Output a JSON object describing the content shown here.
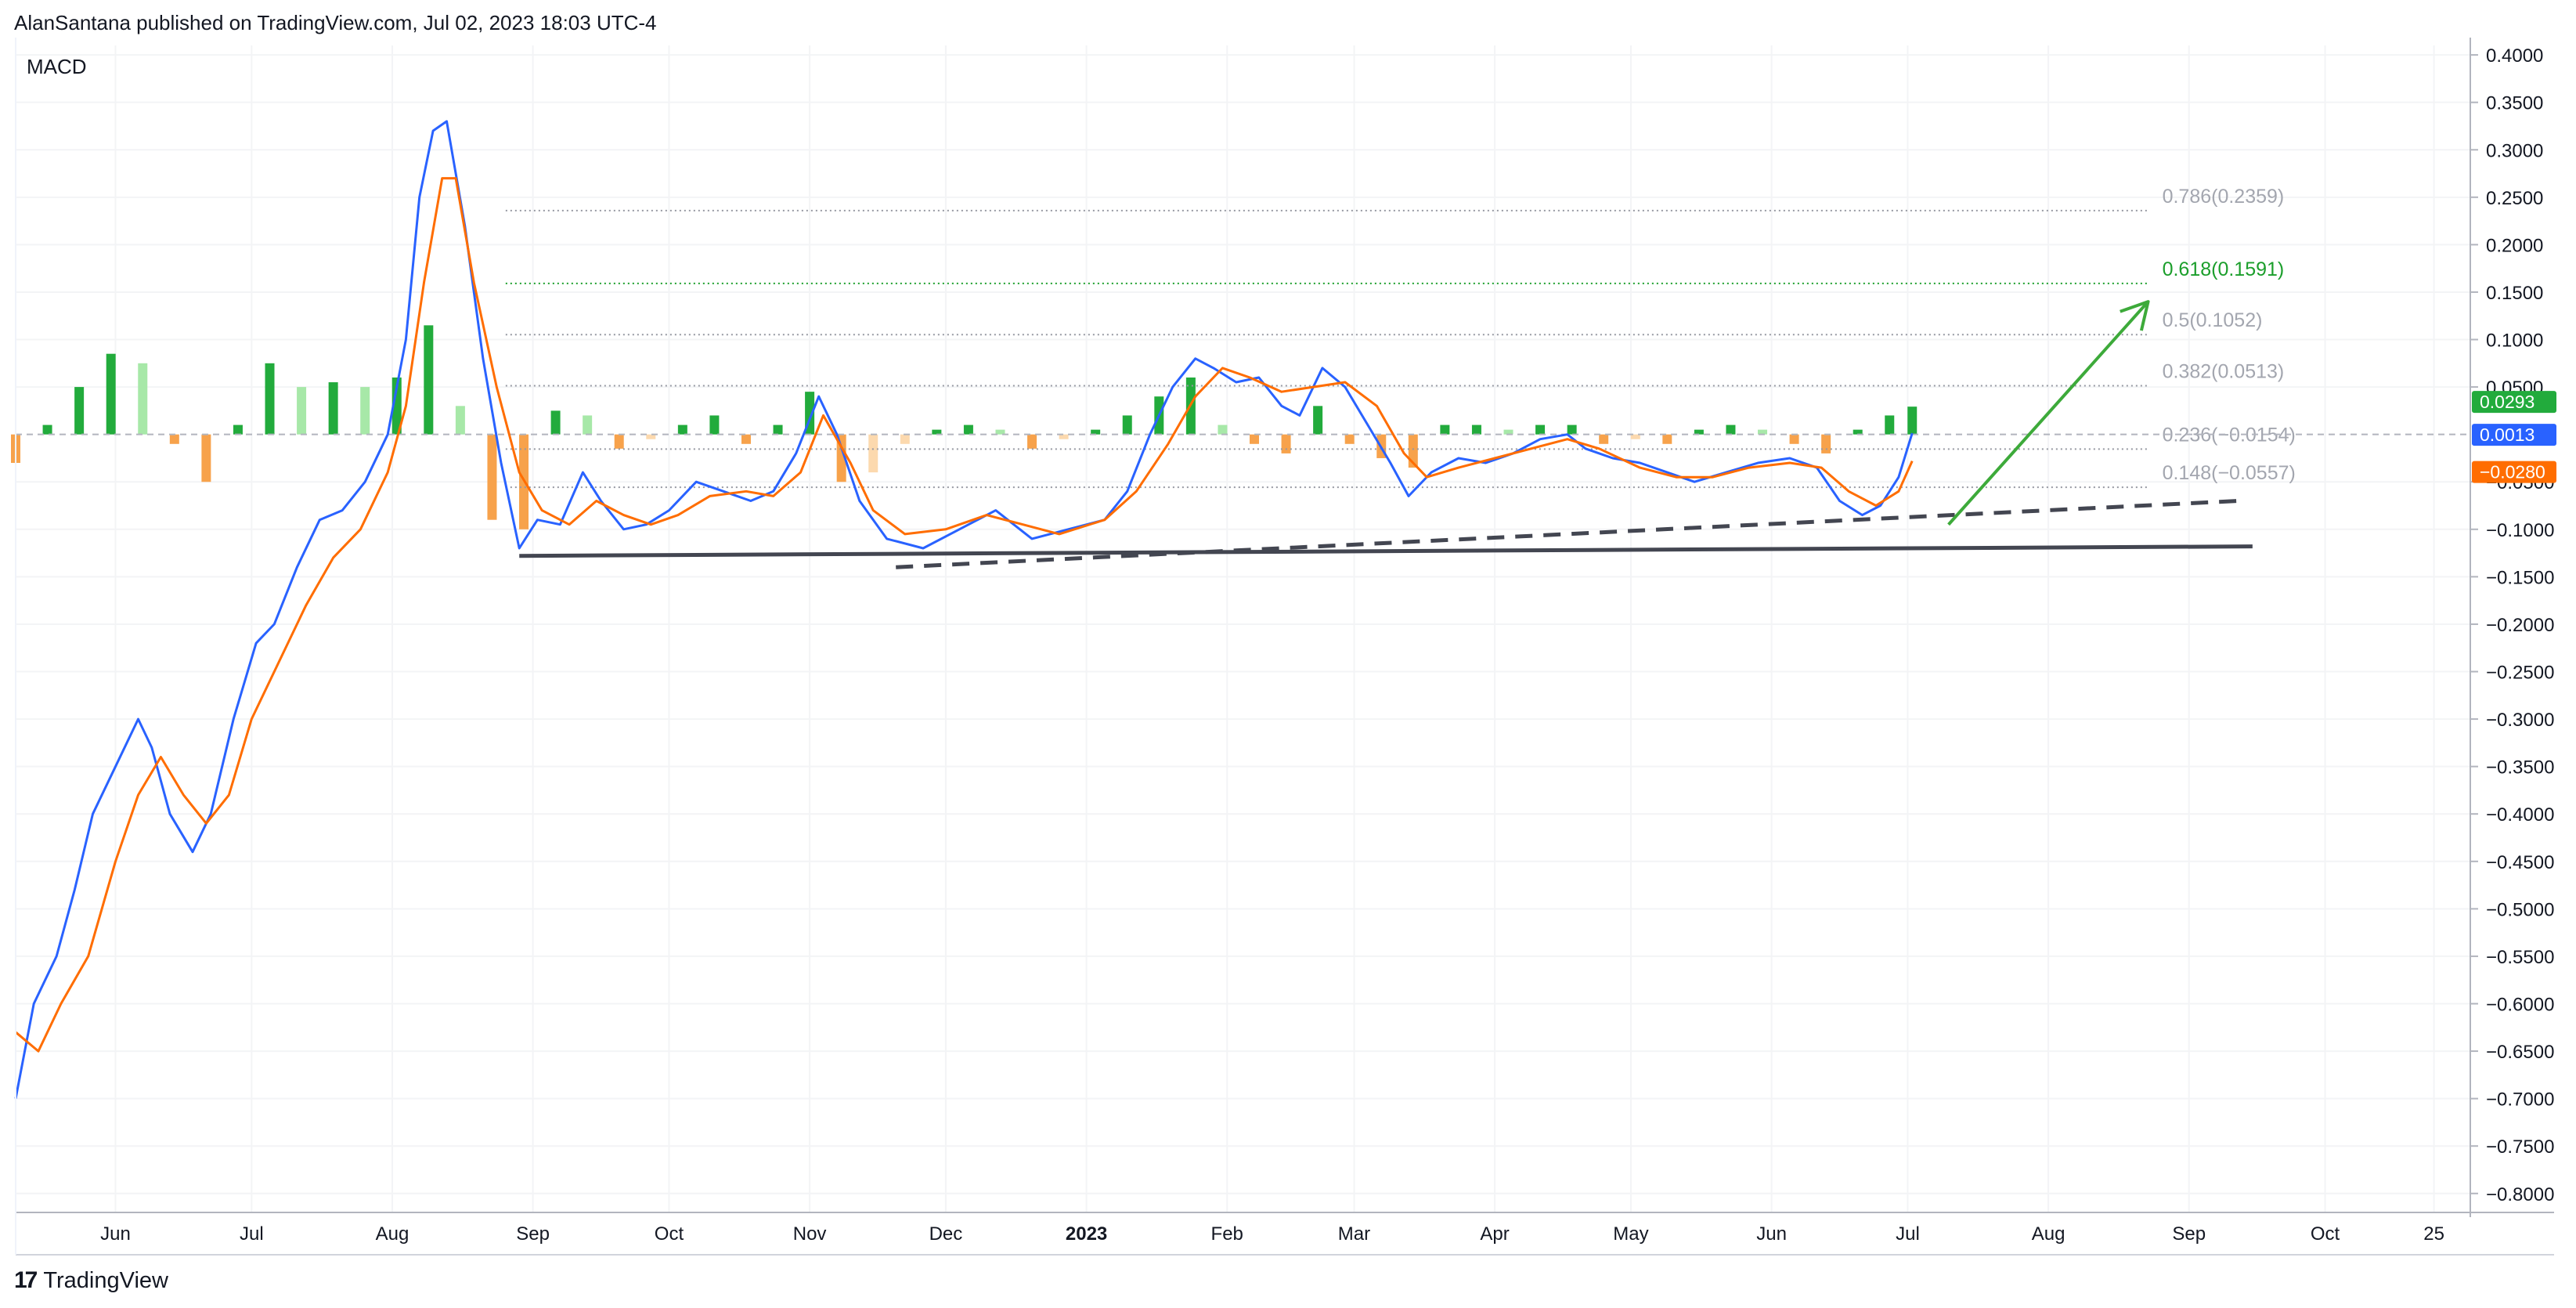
{
  "header": {
    "publisher_line": "AlanSantana published on TradingView.com, Jul 02, 2023 18:03 UTC-4"
  },
  "brand": {
    "logo_text": "TradingView",
    "logo_mark": "17"
  },
  "colors": {
    "macd": "#2962ff",
    "signal": "#ff6d00",
    "hist_pos_strong": "#26a69a",
    "hist_pos": "#22ab3c",
    "hist_pos_light": "#a7e8a8",
    "hist_neg": "#f7a24b",
    "hist_neg_light": "#fcd9ae",
    "fib": "#9598a1",
    "fib_highlight": "#1b9e2b",
    "arrow": "#3daa3a",
    "trendline": "#434651"
  },
  "chart_data": {
    "type": "line",
    "indicator_label": "MACD",
    "ylim": [
      -0.82,
      0.41
    ],
    "y_ticks": [
      "0.4000",
      "0.3500",
      "0.3000",
      "0.2500",
      "0.2000",
      "0.1500",
      "0.1000",
      "0.0500",
      "−0.0500",
      "−0.1000",
      "−0.1500",
      "−0.2000",
      "−0.2500",
      "−0.3000",
      "−0.3500",
      "−0.4000",
      "−0.4500",
      "−0.5000",
      "−0.5500",
      "−0.6000",
      "−0.6500",
      "−0.7000",
      "−0.7500",
      "−0.8000"
    ],
    "y_tick_values": [
      0.4,
      0.35,
      0.3,
      0.25,
      0.2,
      0.15,
      0.1,
      0.05,
      -0.05,
      -0.1,
      -0.15,
      -0.2,
      -0.25,
      -0.3,
      -0.35,
      -0.4,
      -0.45,
      -0.5,
      -0.55,
      -0.6,
      -0.65,
      -0.7,
      -0.75,
      -0.8
    ],
    "x_range": [
      "2022-05-10",
      "2023-11-02"
    ],
    "x_ticks": [
      {
        "label": "Jun",
        "date": "2022-06-01",
        "bold": false
      },
      {
        "label": "Jul",
        "date": "2022-07-01",
        "bold": false
      },
      {
        "label": "Aug",
        "date": "2022-08-01",
        "bold": false
      },
      {
        "label": "Sep",
        "date": "2022-09-01",
        "bold": false
      },
      {
        "label": "Oct",
        "date": "2022-10-01",
        "bold": false
      },
      {
        "label": "Nov",
        "date": "2022-11-01",
        "bold": false
      },
      {
        "label": "Dec",
        "date": "2022-12-01",
        "bold": false
      },
      {
        "label": "2023",
        "date": "2023-01-01",
        "bold": true
      },
      {
        "label": "Feb",
        "date": "2023-02-01",
        "bold": false
      },
      {
        "label": "Mar",
        "date": "2023-03-01",
        "bold": false
      },
      {
        "label": "Apr",
        "date": "2023-04-01",
        "bold": false
      },
      {
        "label": "May",
        "date": "2023-05-01",
        "bold": false
      },
      {
        "label": "Jun",
        "date": "2023-06-01",
        "bold": false
      },
      {
        "label": "Jul",
        "date": "2023-07-01",
        "bold": false
      },
      {
        "label": "Aug",
        "date": "2023-08-01",
        "bold": false
      },
      {
        "label": "Sep",
        "date": "2023-09-01",
        "bold": false
      },
      {
        "label": "Oct",
        "date": "2023-10-01",
        "bold": false
      },
      {
        "label": "25",
        "date": "2023-10-25",
        "bold": false
      }
    ],
    "series": [
      {
        "name": "MACD",
        "color": "#2962ff",
        "points": [
          [
            "2022-05-10",
            -0.7
          ],
          [
            "2022-05-14",
            -0.6
          ],
          [
            "2022-05-19",
            -0.55
          ],
          [
            "2022-05-23",
            -0.48
          ],
          [
            "2022-05-27",
            -0.4
          ],
          [
            "2022-06-01",
            -0.35
          ],
          [
            "2022-06-06",
            -0.3
          ],
          [
            "2022-06-09",
            -0.33
          ],
          [
            "2022-06-13",
            -0.4
          ],
          [
            "2022-06-18",
            -0.44
          ],
          [
            "2022-06-22",
            -0.4
          ],
          [
            "2022-06-27",
            -0.3
          ],
          [
            "2022-07-02",
            -0.22
          ],
          [
            "2022-07-06",
            -0.2
          ],
          [
            "2022-07-11",
            -0.14
          ],
          [
            "2022-07-16",
            -0.09
          ],
          [
            "2022-07-21",
            -0.08
          ],
          [
            "2022-07-26",
            -0.05
          ],
          [
            "2022-07-31",
            0.0
          ],
          [
            "2022-08-04",
            0.1
          ],
          [
            "2022-08-07",
            0.25
          ],
          [
            "2022-08-10",
            0.32
          ],
          [
            "2022-08-13",
            0.33
          ],
          [
            "2022-08-17",
            0.22
          ],
          [
            "2022-08-21",
            0.08
          ],
          [
            "2022-08-25",
            -0.03
          ],
          [
            "2022-08-29",
            -0.12
          ],
          [
            "2022-09-02",
            -0.09
          ],
          [
            "2022-09-07",
            -0.095
          ],
          [
            "2022-09-12",
            -0.04
          ],
          [
            "2022-09-16",
            -0.07
          ],
          [
            "2022-09-21",
            -0.1
          ],
          [
            "2022-09-26",
            -0.095
          ],
          [
            "2022-10-01",
            -0.08
          ],
          [
            "2022-10-07",
            -0.05
          ],
          [
            "2022-10-13",
            -0.06
          ],
          [
            "2022-10-19",
            -0.07
          ],
          [
            "2022-10-24",
            -0.06
          ],
          [
            "2022-10-29",
            -0.02
          ],
          [
            "2022-11-03",
            0.04
          ],
          [
            "2022-11-07",
            0.0
          ],
          [
            "2022-11-12",
            -0.07
          ],
          [
            "2022-11-18",
            -0.11
          ],
          [
            "2022-11-26",
            -0.12
          ],
          [
            "2022-12-04",
            -0.1
          ],
          [
            "2022-12-12",
            -0.08
          ],
          [
            "2022-12-20",
            -0.11
          ],
          [
            "2022-12-28",
            -0.1
          ],
          [
            "2023-01-05",
            -0.09
          ],
          [
            "2023-01-10",
            -0.06
          ],
          [
            "2023-01-15",
            0.0
          ],
          [
            "2023-01-20",
            0.05
          ],
          [
            "2023-01-25",
            0.08
          ],
          [
            "2023-01-29",
            0.07
          ],
          [
            "2023-02-03",
            0.055
          ],
          [
            "2023-02-08",
            0.06
          ],
          [
            "2023-02-13",
            0.03
          ],
          [
            "2023-02-17",
            0.02
          ],
          [
            "2023-02-22",
            0.07
          ],
          [
            "2023-02-27",
            0.05
          ],
          [
            "2023-03-04",
            0.01
          ],
          [
            "2023-03-09",
            -0.03
          ],
          [
            "2023-03-13",
            -0.065
          ],
          [
            "2023-03-18",
            -0.04
          ],
          [
            "2023-03-24",
            -0.025
          ],
          [
            "2023-03-30",
            -0.03
          ],
          [
            "2023-04-05",
            -0.02
          ],
          [
            "2023-04-11",
            -0.005
          ],
          [
            "2023-04-17",
            0.0
          ],
          [
            "2023-04-21",
            -0.015
          ],
          [
            "2023-04-27",
            -0.025
          ],
          [
            "2023-05-03",
            -0.03
          ],
          [
            "2023-05-09",
            -0.04
          ],
          [
            "2023-05-15",
            -0.05
          ],
          [
            "2023-05-22",
            -0.04
          ],
          [
            "2023-05-29",
            -0.03
          ],
          [
            "2023-06-05",
            -0.025
          ],
          [
            "2023-06-11",
            -0.035
          ],
          [
            "2023-06-16",
            -0.07
          ],
          [
            "2023-06-21",
            -0.085
          ],
          [
            "2023-06-25",
            -0.075
          ],
          [
            "2023-06-29",
            -0.045
          ],
          [
            "2023-07-02",
            0.0013
          ]
        ]
      },
      {
        "name": "Signal",
        "color": "#ff6d00",
        "points": [
          [
            "2022-05-10",
            -0.63
          ],
          [
            "2022-05-15",
            -0.65
          ],
          [
            "2022-05-20",
            -0.6
          ],
          [
            "2022-05-26",
            -0.55
          ],
          [
            "2022-06-01",
            -0.45
          ],
          [
            "2022-06-06",
            -0.38
          ],
          [
            "2022-06-11",
            -0.34
          ],
          [
            "2022-06-16",
            -0.38
          ],
          [
            "2022-06-21",
            -0.41
          ],
          [
            "2022-06-26",
            -0.38
          ],
          [
            "2022-07-01",
            -0.3
          ],
          [
            "2022-07-07",
            -0.24
          ],
          [
            "2022-07-13",
            -0.18
          ],
          [
            "2022-07-19",
            -0.13
          ],
          [
            "2022-07-25",
            -0.1
          ],
          [
            "2022-07-31",
            -0.04
          ],
          [
            "2022-08-04",
            0.03
          ],
          [
            "2022-08-08",
            0.16
          ],
          [
            "2022-08-12",
            0.27
          ],
          [
            "2022-08-15",
            0.27
          ],
          [
            "2022-08-19",
            0.16
          ],
          [
            "2022-08-24",
            0.05
          ],
          [
            "2022-08-29",
            -0.04
          ],
          [
            "2022-09-03",
            -0.08
          ],
          [
            "2022-09-09",
            -0.095
          ],
          [
            "2022-09-15",
            -0.07
          ],
          [
            "2022-09-21",
            -0.085
          ],
          [
            "2022-09-27",
            -0.095
          ],
          [
            "2022-10-03",
            -0.085
          ],
          [
            "2022-10-10",
            -0.065
          ],
          [
            "2022-10-18",
            -0.06
          ],
          [
            "2022-10-24",
            -0.065
          ],
          [
            "2022-10-30",
            -0.04
          ],
          [
            "2022-11-04",
            0.02
          ],
          [
            "2022-11-10",
            -0.03
          ],
          [
            "2022-11-15",
            -0.08
          ],
          [
            "2022-11-22",
            -0.105
          ],
          [
            "2022-12-01",
            -0.1
          ],
          [
            "2022-12-10",
            -0.085
          ],
          [
            "2022-12-18",
            -0.095
          ],
          [
            "2022-12-26",
            -0.105
          ],
          [
            "2023-01-05",
            -0.09
          ],
          [
            "2023-01-12",
            -0.06
          ],
          [
            "2023-01-19",
            -0.01
          ],
          [
            "2023-01-25",
            0.04
          ],
          [
            "2023-01-31",
            0.07
          ],
          [
            "2023-02-06",
            0.06
          ],
          [
            "2023-02-13",
            0.045
          ],
          [
            "2023-02-20",
            0.05
          ],
          [
            "2023-02-27",
            0.055
          ],
          [
            "2023-03-06",
            0.03
          ],
          [
            "2023-03-12",
            -0.02
          ],
          [
            "2023-03-17",
            -0.045
          ],
          [
            "2023-03-24",
            -0.035
          ],
          [
            "2023-04-01",
            -0.025
          ],
          [
            "2023-04-09",
            -0.015
          ],
          [
            "2023-04-17",
            -0.005
          ],
          [
            "2023-04-24",
            -0.015
          ],
          [
            "2023-05-03",
            -0.035
          ],
          [
            "2023-05-11",
            -0.045
          ],
          [
            "2023-05-19",
            -0.045
          ],
          [
            "2023-05-27",
            -0.035
          ],
          [
            "2023-06-05",
            -0.03
          ],
          [
            "2023-06-12",
            -0.035
          ],
          [
            "2023-06-18",
            -0.06
          ],
          [
            "2023-06-24",
            -0.075
          ],
          [
            "2023-06-29",
            -0.06
          ],
          [
            "2023-07-02",
            -0.028
          ]
        ]
      }
    ],
    "histogram": [
      {
        "date": "2022-05-10",
        "value": -0.03
      },
      {
        "date": "2022-05-17",
        "value": 0.01
      },
      {
        "date": "2022-05-24",
        "value": 0.05
      },
      {
        "date": "2022-05-31",
        "value": 0.085
      },
      {
        "date": "2022-06-07",
        "value": 0.075
      },
      {
        "date": "2022-06-14",
        "value": -0.01
      },
      {
        "date": "2022-06-21",
        "value": -0.05
      },
      {
        "date": "2022-06-28",
        "value": 0.01
      },
      {
        "date": "2022-07-05",
        "value": 0.075
      },
      {
        "date": "2022-07-12",
        "value": 0.05
      },
      {
        "date": "2022-07-19",
        "value": 0.055
      },
      {
        "date": "2022-07-26",
        "value": 0.05
      },
      {
        "date": "2022-08-02",
        "value": 0.06
      },
      {
        "date": "2022-08-09",
        "value": 0.115
      },
      {
        "date": "2022-08-16",
        "value": 0.03
      },
      {
        "date": "2022-08-23",
        "value": -0.09
      },
      {
        "date": "2022-08-30",
        "value": -0.1
      },
      {
        "date": "2022-09-06",
        "value": 0.025
      },
      {
        "date": "2022-09-13",
        "value": 0.02
      },
      {
        "date": "2022-09-20",
        "value": -0.015
      },
      {
        "date": "2022-09-27",
        "value": -0.005
      },
      {
        "date": "2022-10-04",
        "value": 0.01
      },
      {
        "date": "2022-10-11",
        "value": 0.02
      },
      {
        "date": "2022-10-18",
        "value": -0.01
      },
      {
        "date": "2022-10-25",
        "value": 0.01
      },
      {
        "date": "2022-11-01",
        "value": 0.045
      },
      {
        "date": "2022-11-08",
        "value": -0.05
      },
      {
        "date": "2022-11-15",
        "value": -0.04
      },
      {
        "date": "2022-11-22",
        "value": -0.01
      },
      {
        "date": "2022-11-29",
        "value": 0.005
      },
      {
        "date": "2022-12-06",
        "value": 0.01
      },
      {
        "date": "2022-12-13",
        "value": 0.005
      },
      {
        "date": "2022-12-20",
        "value": -0.015
      },
      {
        "date": "2022-12-27",
        "value": -0.005
      },
      {
        "date": "2023-01-03",
        "value": 0.005
      },
      {
        "date": "2023-01-10",
        "value": 0.02
      },
      {
        "date": "2023-01-17",
        "value": 0.04
      },
      {
        "date": "2023-01-24",
        "value": 0.06
      },
      {
        "date": "2023-01-31",
        "value": 0.01
      },
      {
        "date": "2023-02-07",
        "value": -0.01
      },
      {
        "date": "2023-02-14",
        "value": -0.02
      },
      {
        "date": "2023-02-21",
        "value": 0.03
      },
      {
        "date": "2023-02-28",
        "value": -0.01
      },
      {
        "date": "2023-03-07",
        "value": -0.025
      },
      {
        "date": "2023-03-14",
        "value": -0.035
      },
      {
        "date": "2023-03-21",
        "value": 0.01
      },
      {
        "date": "2023-03-28",
        "value": 0.01
      },
      {
        "date": "2023-04-04",
        "value": 0.005
      },
      {
        "date": "2023-04-11",
        "value": 0.01
      },
      {
        "date": "2023-04-18",
        "value": 0.01
      },
      {
        "date": "2023-04-25",
        "value": -0.01
      },
      {
        "date": "2023-05-02",
        "value": -0.005
      },
      {
        "date": "2023-05-09",
        "value": -0.01
      },
      {
        "date": "2023-05-16",
        "value": 0.005
      },
      {
        "date": "2023-05-23",
        "value": 0.01
      },
      {
        "date": "2023-05-30",
        "value": 0.005
      },
      {
        "date": "2023-06-06",
        "value": -0.01
      },
      {
        "date": "2023-06-13",
        "value": -0.02
      },
      {
        "date": "2023-06-20",
        "value": 0.005
      },
      {
        "date": "2023-06-27",
        "value": 0.02
      },
      {
        "date": "2023-07-02",
        "value": 0.0293
      }
    ],
    "fib_levels": [
      {
        "label": "0.786(0.2359)",
        "value": 0.2359,
        "highlight": false
      },
      {
        "label": "0.618(0.1591)",
        "value": 0.1591,
        "highlight": true
      },
      {
        "label": "0.5(0.1052)",
        "value": 0.1052,
        "highlight": false
      },
      {
        "label": "0.382(0.0513)",
        "value": 0.0513,
        "highlight": false
      },
      {
        "label": "0.236(−0.0154)",
        "value": -0.0154,
        "highlight": false
      },
      {
        "label": "0.148(−0.0557)",
        "value": -0.0557,
        "highlight": false
      }
    ],
    "fib_start_date": "2022-08-26",
    "fib_end_date": "2023-08-23",
    "price_badges": [
      {
        "label": "0.0293",
        "value": 0.0293,
        "color": "#22ab3c"
      },
      {
        "label": "0.0013",
        "value": 0.0013,
        "color": "#2962ff"
      },
      {
        "label": "−0.0280",
        "value": -0.028,
        "color": "#ff6d00"
      }
    ],
    "support_line": {
      "x1": "2022-08-29",
      "y1": -0.128,
      "x2": "2023-09-15",
      "y2": -0.118,
      "style": "solid"
    },
    "rising_trendline": {
      "x1": "2022-11-20",
      "y1": -0.14,
      "x2": "2023-09-12",
      "y2": -0.07,
      "style": "dashed"
    },
    "projection_arrow": {
      "x1": "2023-07-10",
      "y1": -0.095,
      "x2": "2023-08-23",
      "y2": 0.14
    }
  }
}
